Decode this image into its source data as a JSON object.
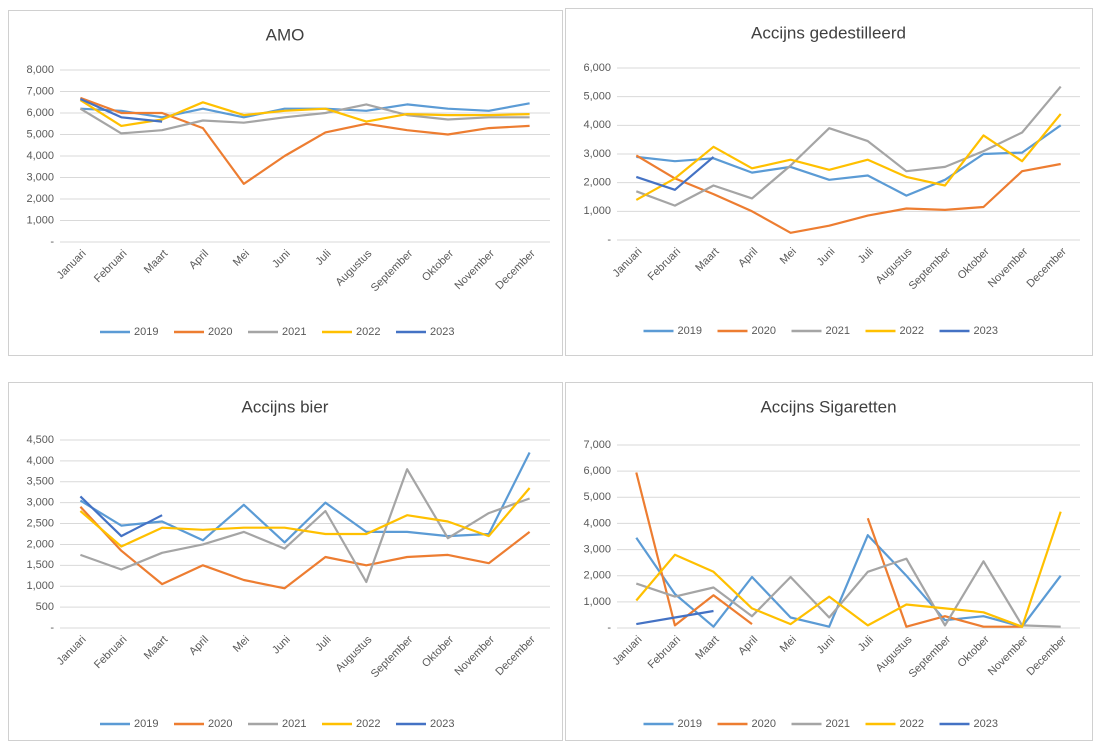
{
  "chart_data": [
    {
      "type": "line",
      "title": "AMO",
      "categories": [
        "Januari",
        "Februari",
        "Maart",
        "April",
        "Mei",
        "Juni",
        "Juli",
        "Augustus",
        "September",
        "Oktober",
        "November",
        "December"
      ],
      "ylim": [
        0,
        8000
      ],
      "yticks": [
        {
          "value": 0,
          "label": "-"
        },
        {
          "value": 1000,
          "label": "1,000"
        },
        {
          "value": 2000,
          "label": "2,000"
        },
        {
          "value": 3000,
          "label": "3,000"
        },
        {
          "value": 4000,
          "label": "4,000"
        },
        {
          "value": 5000,
          "label": "5,000"
        },
        {
          "value": 6000,
          "label": "6,000"
        },
        {
          "value": 7000,
          "label": "7,000"
        },
        {
          "value": 8000,
          "label": "8,000"
        }
      ],
      "grid": true,
      "series": [
        {
          "name": "2019",
          "color": "#5b9bd5",
          "values": [
            6200,
            6100,
            5800,
            6200,
            5800,
            6200,
            6200,
            6100,
            6400,
            6200,
            6100,
            6450
          ]
        },
        {
          "name": "2020",
          "color": "#ed7d31",
          "values": [
            6700,
            6000,
            6000,
            5300,
            2700,
            4000,
            5100,
            5500,
            5200,
            5000,
            5300,
            5400
          ]
        },
        {
          "name": "2021",
          "color": "#a5a5a5",
          "values": [
            6200,
            5050,
            5200,
            5650,
            5550,
            5800,
            6000,
            6400,
            5900,
            5700,
            5800,
            5800
          ]
        },
        {
          "name": "2022",
          "color": "#ffc000",
          "values": [
            6600,
            5400,
            5700,
            6500,
            5900,
            6100,
            6200,
            5600,
            5950,
            5900,
            5900,
            5950
          ]
        },
        {
          "name": "2023",
          "color": "#4472c4",
          "values": [
            6650,
            5800,
            5600,
            null,
            null,
            null,
            null,
            null,
            null,
            null,
            null,
            null
          ]
        }
      ]
    },
    {
      "type": "line",
      "title": "Accijns gedestilleerd",
      "categories": [
        "Januari",
        "Februari",
        "Maart",
        "April",
        "Mei",
        "Juni",
        "Juli",
        "Augustus",
        "September",
        "Oktober",
        "November",
        "December"
      ],
      "ylim": [
        0,
        6000
      ],
      "yticks": [
        {
          "value": 0,
          "label": "-"
        },
        {
          "value": 1000,
          "label": "1,000"
        },
        {
          "value": 2000,
          "label": "2,000"
        },
        {
          "value": 3000,
          "label": "3,000"
        },
        {
          "value": 4000,
          "label": "4,000"
        },
        {
          "value": 5000,
          "label": "5,000"
        },
        {
          "value": 6000,
          "label": "6,000"
        }
      ],
      "grid": true,
      "series": [
        {
          "name": "2019",
          "color": "#5b9bd5",
          "values": [
            2900,
            2750,
            2850,
            2350,
            2550,
            2100,
            2250,
            1550,
            2100,
            3000,
            3050,
            4000
          ]
        },
        {
          "name": "2020",
          "color": "#ed7d31",
          "values": [
            2950,
            2150,
            1600,
            1000,
            250,
            500,
            850,
            1100,
            1050,
            1150,
            2400,
            2650
          ]
        },
        {
          "name": "2021",
          "color": "#a5a5a5",
          "values": [
            1700,
            1200,
            1900,
            1450,
            2600,
            3900,
            3450,
            2400,
            2550,
            3100,
            3750,
            5350
          ]
        },
        {
          "name": "2022",
          "color": "#ffc000",
          "values": [
            1400,
            2150,
            3250,
            2500,
            2800,
            2450,
            2800,
            2200,
            1900,
            3650,
            2750,
            4400
          ]
        },
        {
          "name": "2023",
          "color": "#4472c4",
          "values": [
            2200,
            1750,
            2900,
            null,
            null,
            null,
            null,
            null,
            null,
            null,
            null,
            null
          ]
        }
      ]
    },
    {
      "type": "line",
      "title": "Accijns bier",
      "categories": [
        "Januari",
        "Februari",
        "Maart",
        "April",
        "Mei",
        "Juni",
        "Juli",
        "Augustus",
        "September",
        "Oktober",
        "November",
        "December"
      ],
      "ylim": [
        0,
        4500
      ],
      "yticks": [
        {
          "value": 0,
          "label": "-"
        },
        {
          "value": 500,
          "label": "500"
        },
        {
          "value": 1000,
          "label": "1,000"
        },
        {
          "value": 1500,
          "label": "1,500"
        },
        {
          "value": 2000,
          "label": "2,000"
        },
        {
          "value": 2500,
          "label": "2,500"
        },
        {
          "value": 3000,
          "label": "3,000"
        },
        {
          "value": 3500,
          "label": "3,500"
        },
        {
          "value": 4000,
          "label": "4,000"
        },
        {
          "value": 4500,
          "label": "4,500"
        }
      ],
      "grid": true,
      "series": [
        {
          "name": "2019",
          "color": "#5b9bd5",
          "values": [
            3050,
            2450,
            2550,
            2100,
            2950,
            2050,
            3000,
            2300,
            2300,
            2200,
            2250,
            4200
          ]
        },
        {
          "name": "2020",
          "color": "#ed7d31",
          "values": [
            2900,
            1850,
            1050,
            1500,
            1150,
            950,
            1700,
            1500,
            1700,
            1750,
            1550,
            2300
          ]
        },
        {
          "name": "2021",
          "color": "#a5a5a5",
          "values": [
            1750,
            1400,
            1800,
            2000,
            2300,
            1900,
            2800,
            1100,
            3800,
            2150,
            2750,
            3100
          ]
        },
        {
          "name": "2022",
          "color": "#ffc000",
          "values": [
            2800,
            1950,
            2400,
            2350,
            2400,
            2400,
            2250,
            2250,
            2700,
            2550,
            2200,
            3350
          ]
        },
        {
          "name": "2023",
          "color": "#4472c4",
          "values": [
            3150,
            2200,
            2700,
            null,
            null,
            null,
            null,
            null,
            null,
            null,
            null,
            null
          ]
        }
      ]
    },
    {
      "type": "line",
      "title": "Accijns Sigaretten",
      "categories": [
        "Januari",
        "Februari",
        "Maart",
        "April",
        "Mei",
        "Juni",
        "Juli",
        "Augustus",
        "September",
        "Oktober",
        "November",
        "December"
      ],
      "ylim": [
        0,
        7000
      ],
      "yticks": [
        {
          "value": 0,
          "label": "-"
        },
        {
          "value": 1000,
          "label": "1,000"
        },
        {
          "value": 2000,
          "label": "2,000"
        },
        {
          "value": 3000,
          "label": "3,000"
        },
        {
          "value": 4000,
          "label": "4,000"
        },
        {
          "value": 5000,
          "label": "5,000"
        },
        {
          "value": 6000,
          "label": "6,000"
        },
        {
          "value": 7000,
          "label": "7,000"
        }
      ],
      "grid": true,
      "series": [
        {
          "name": "2019",
          "color": "#5b9bd5",
          "values": [
            3450,
            1300,
            50,
            1950,
            400,
            50,
            3550,
            2000,
            300,
            450,
            50,
            2000
          ]
        },
        {
          "name": "2020",
          "color": "#ed7d31",
          "values": [
            5950,
            100,
            1250,
            150,
            null,
            null,
            4200,
            50,
            450,
            50,
            50,
            null
          ]
        },
        {
          "name": "2021",
          "color": "#a5a5a5",
          "values": [
            1700,
            1200,
            1550,
            450,
            1950,
            400,
            2150,
            2650,
            100,
            2550,
            100,
            50
          ]
        },
        {
          "name": "2022",
          "color": "#ffc000",
          "values": [
            1050,
            2800,
            2150,
            750,
            150,
            1200,
            100,
            900,
            750,
            600,
            50,
            4450
          ]
        },
        {
          "name": "2023",
          "color": "#4472c4",
          "values": [
            150,
            400,
            650,
            null,
            null,
            null,
            null,
            null,
            null,
            null,
            null,
            null
          ]
        }
      ]
    }
  ]
}
